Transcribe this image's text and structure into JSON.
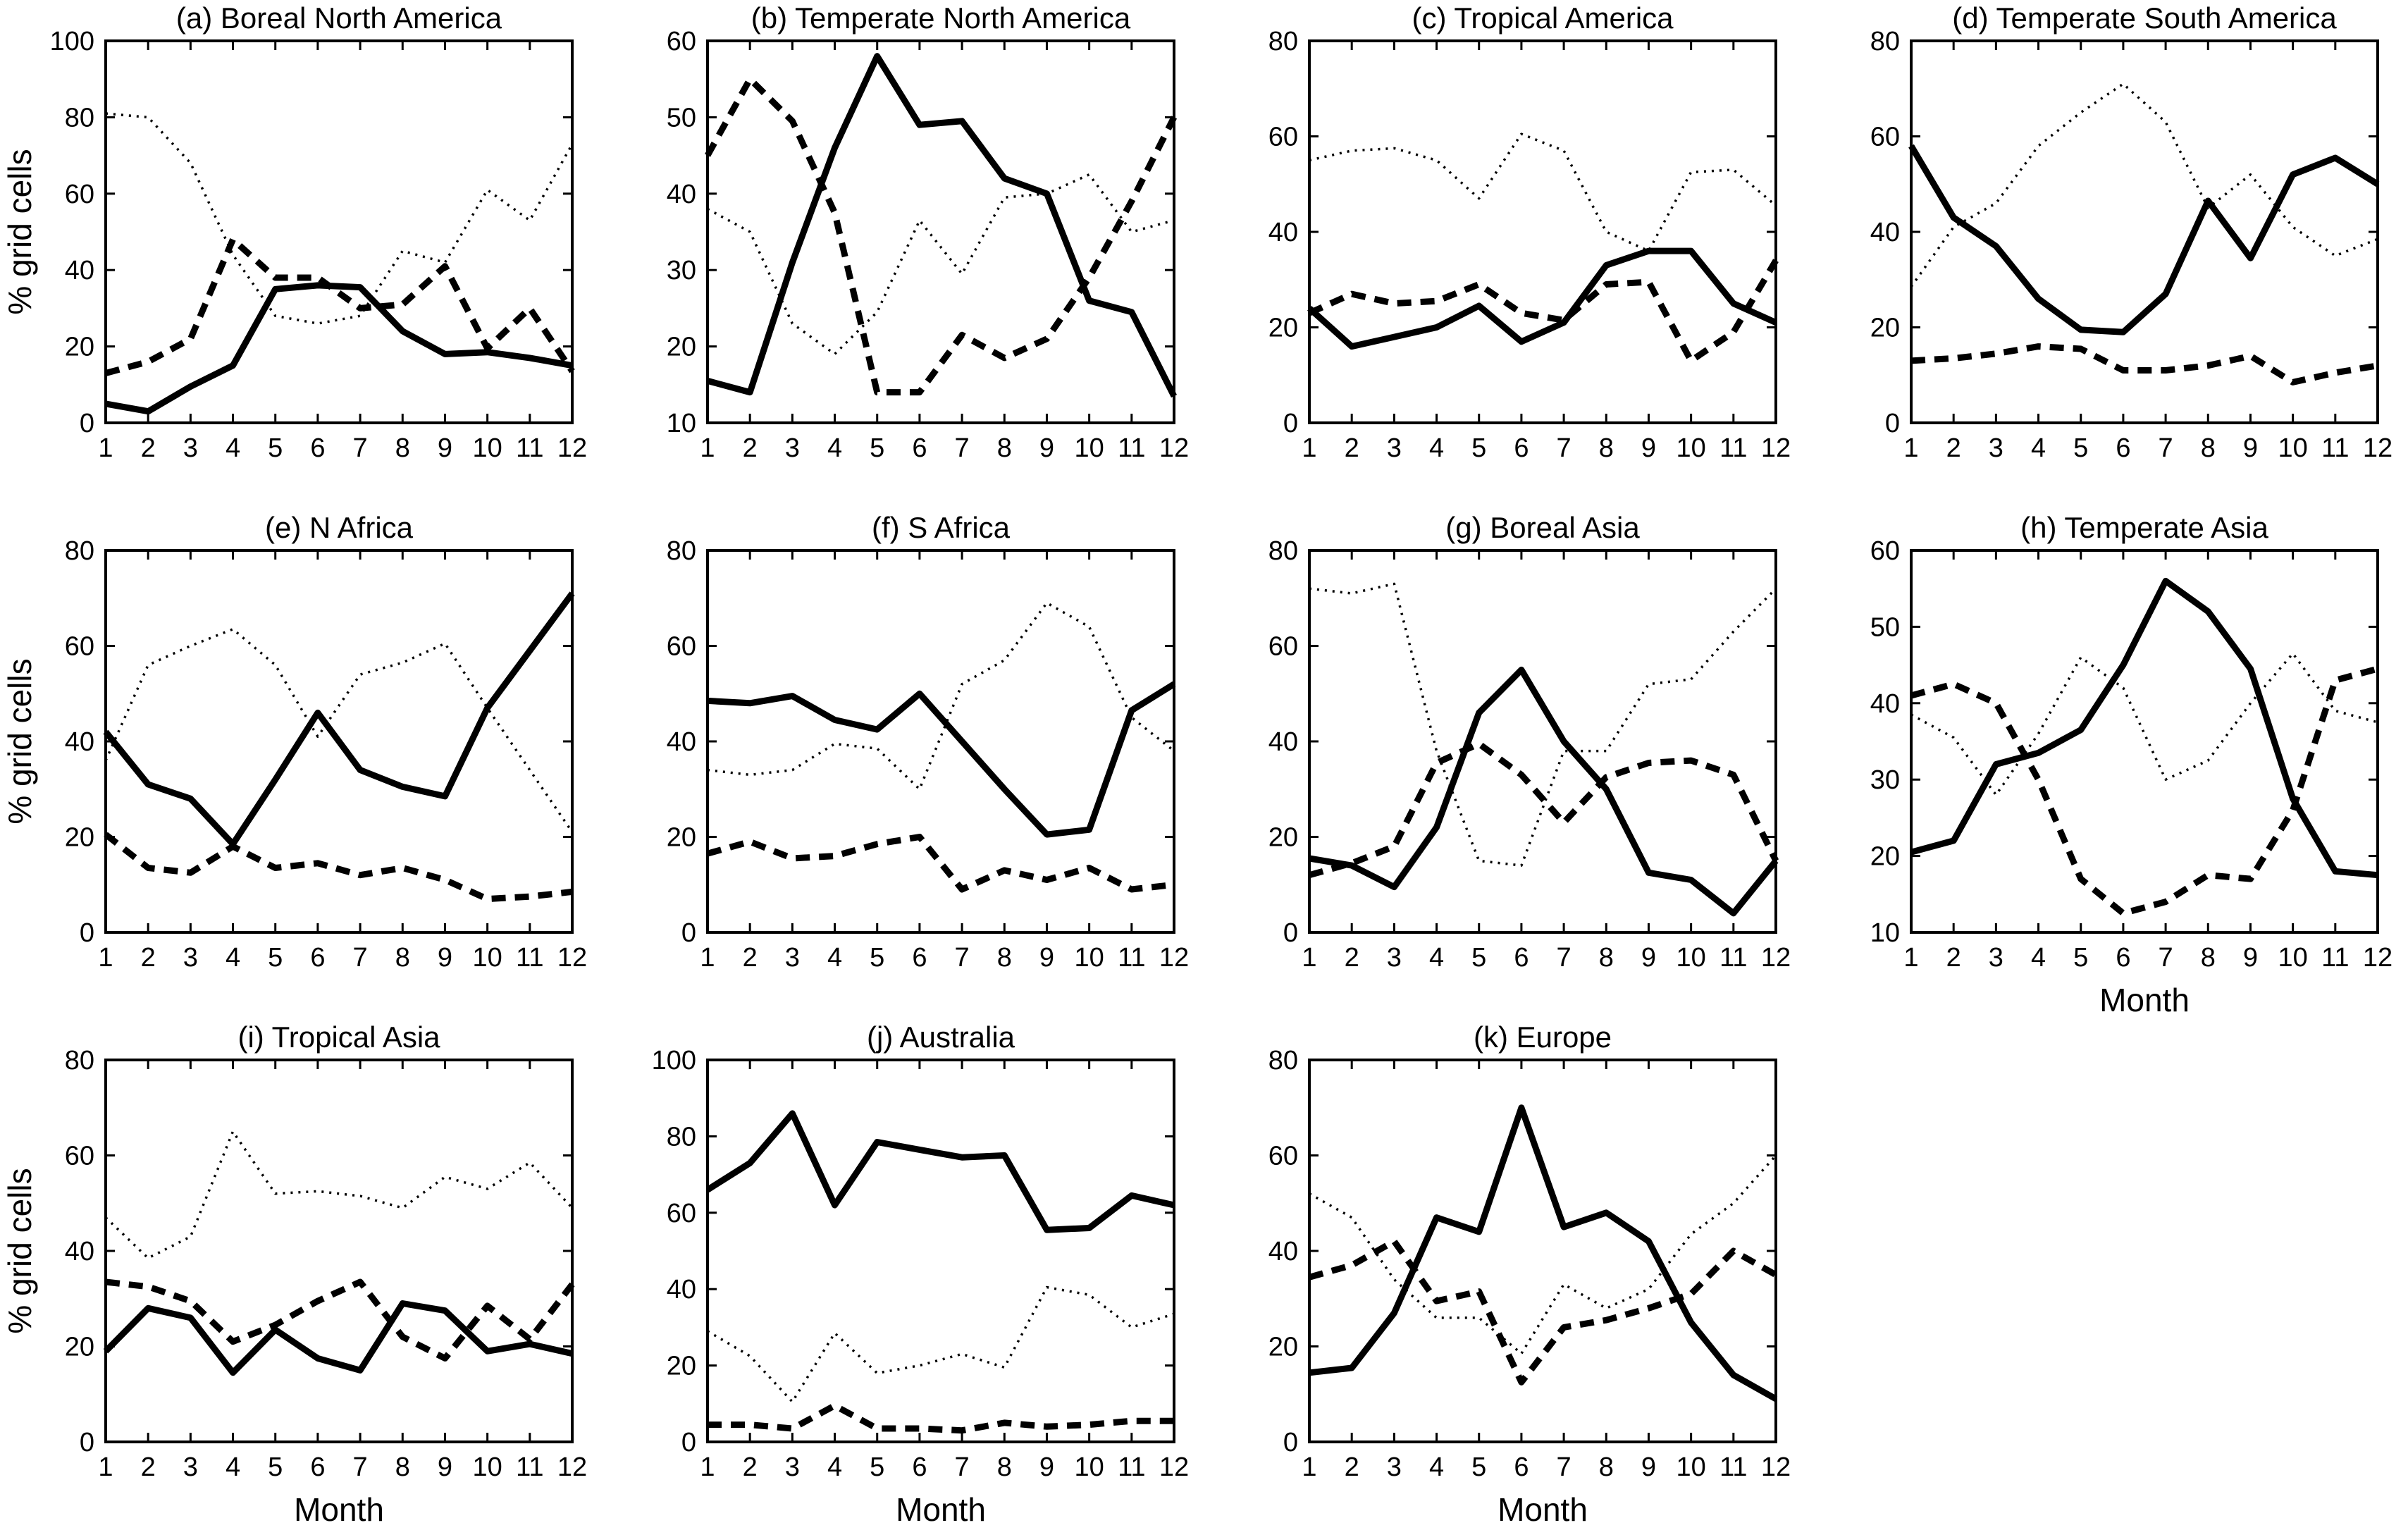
{
  "figure": {
    "background": "#ffffff",
    "line_color": "#000000",
    "ylabel": "% grid cells",
    "xlabel": "Month",
    "x_months": [
      1,
      2,
      3,
      4,
      5,
      6,
      7,
      8,
      9,
      10,
      11,
      12
    ]
  },
  "chart_data": [
    {
      "id": "a",
      "type": "line",
      "title": "(a) Boreal North America",
      "xlabel": "",
      "ylabel": "% grid cells",
      "ylim": [
        0,
        100
      ],
      "yticks": [
        0,
        20,
        40,
        60,
        80,
        100
      ],
      "show_ylabel": true,
      "show_xlabel": false,
      "x": [
        1,
        2,
        3,
        4,
        5,
        6,
        7,
        8,
        9,
        10,
        11,
        12
      ],
      "series": [
        {
          "name": "thick_solid",
          "style": "solid",
          "values": [
            5,
            3,
            9.5,
            15,
            35,
            36,
            35.5,
            24,
            18,
            18.5,
            17,
            15
          ]
        },
        {
          "name": "thick_dashed",
          "style": "dashed",
          "values": [
            13,
            16,
            22,
            48,
            38,
            38,
            30,
            31,
            41,
            19.5,
            30,
            13.5
          ]
        },
        {
          "name": "thin_dotted",
          "style": "dotted",
          "values": [
            81,
            80,
            68,
            44,
            28,
            26,
            28,
            45,
            42,
            61,
            53,
            73
          ]
        }
      ]
    },
    {
      "id": "b",
      "type": "line",
      "title": "(b) Temperate North America",
      "xlabel": "",
      "ylabel": "",
      "ylim": [
        10,
        60
      ],
      "yticks": [
        10,
        20,
        30,
        40,
        50,
        60
      ],
      "show_ylabel": false,
      "show_xlabel": false,
      "x": [
        1,
        2,
        3,
        4,
        5,
        6,
        7,
        8,
        9,
        10,
        11,
        12
      ],
      "series": [
        {
          "name": "thick_solid",
          "style": "solid",
          "values": [
            15.5,
            14,
            31,
            46,
            58,
            49,
            49.5,
            42,
            40,
            26,
            24.5,
            13.5
          ]
        },
        {
          "name": "thick_dashed",
          "style": "dashed",
          "values": [
            45,
            55,
            49.5,
            37.5,
            14,
            14,
            21.5,
            18.5,
            21,
            29,
            39,
            50
          ]
        },
        {
          "name": "thin_dotted",
          "style": "dotted",
          "values": [
            38,
            35,
            23,
            19,
            24.5,
            36.5,
            29.5,
            39.5,
            40,
            42.5,
            35,
            36.5
          ]
        }
      ]
    },
    {
      "id": "c",
      "type": "line",
      "title": "(c) Tropical America",
      "xlabel": "",
      "ylabel": "",
      "ylim": [
        0,
        80
      ],
      "yticks": [
        0,
        20,
        40,
        60,
        80
      ],
      "show_ylabel": false,
      "show_xlabel": false,
      "x": [
        1,
        2,
        3,
        4,
        5,
        6,
        7,
        8,
        9,
        10,
        11,
        12
      ],
      "series": [
        {
          "name": "thick_solid",
          "style": "solid",
          "values": [
            24,
            16,
            18,
            20,
            24.5,
            17,
            21,
            33,
            36,
            36,
            25,
            21
          ]
        },
        {
          "name": "thick_dashed",
          "style": "dashed",
          "values": [
            23,
            27,
            25,
            25.5,
            29,
            23,
            21.5,
            29,
            29.5,
            13,
            19,
            34
          ]
        },
        {
          "name": "thin_dotted",
          "style": "dotted",
          "values": [
            55,
            57,
            57.5,
            55,
            47,
            60.5,
            57,
            40,
            36,
            52.5,
            53,
            45.5
          ]
        }
      ]
    },
    {
      "id": "d",
      "type": "line",
      "title": "(d) Temperate South America",
      "xlabel": "",
      "ylabel": "",
      "ylim": [
        0,
        80
      ],
      "yticks": [
        0,
        20,
        40,
        60,
        80
      ],
      "show_ylabel": false,
      "show_xlabel": false,
      "x": [
        1,
        2,
        3,
        4,
        5,
        6,
        7,
        8,
        9,
        10,
        11,
        12
      ],
      "series": [
        {
          "name": "thick_solid",
          "style": "solid",
          "values": [
            58,
            43,
            37,
            26,
            19.5,
            19,
            27,
            46.5,
            34.5,
            52,
            55.5,
            50
          ]
        },
        {
          "name": "thick_dashed",
          "style": "dashed",
          "values": [
            13,
            13.5,
            14.5,
            16,
            15.5,
            11,
            11,
            12,
            14,
            8.5,
            10.5,
            12
          ]
        },
        {
          "name": "thin_dotted",
          "style": "dotted",
          "values": [
            28.5,
            41,
            46,
            58,
            65,
            71,
            63,
            45,
            52,
            41,
            35,
            38.5
          ]
        }
      ]
    },
    {
      "id": "e",
      "type": "line",
      "title": "(e) N Africa",
      "xlabel": "",
      "ylabel": "% grid cells",
      "ylim": [
        0,
        80
      ],
      "yticks": [
        0,
        20,
        40,
        60,
        80
      ],
      "show_ylabel": true,
      "show_xlabel": false,
      "x": [
        1,
        2,
        3,
        4,
        5,
        6,
        7,
        8,
        9,
        10,
        11,
        12
      ],
      "series": [
        {
          "name": "thick_solid",
          "style": "solid",
          "values": [
            42,
            31,
            28,
            18.5,
            32,
            46,
            34,
            30.5,
            28.5,
            47,
            59,
            71
          ]
        },
        {
          "name": "thick_dashed",
          "style": "dashed",
          "values": [
            20.5,
            13.5,
            12.5,
            18,
            13.5,
            14.5,
            12,
            13.5,
            11,
            7,
            7.5,
            8.5
          ]
        },
        {
          "name": "thin_dotted",
          "style": "dotted",
          "values": [
            36,
            56,
            60,
            63.5,
            56,
            41,
            54,
            56.5,
            60.5,
            47,
            34,
            21
          ]
        }
      ]
    },
    {
      "id": "f",
      "type": "line",
      "title": "(f) S Africa",
      "xlabel": "",
      "ylabel": "",
      "ylim": [
        0,
        80
      ],
      "yticks": [
        0,
        20,
        40,
        60,
        80
      ],
      "show_ylabel": false,
      "show_xlabel": false,
      "x": [
        1,
        2,
        3,
        4,
        5,
        6,
        7,
        8,
        9,
        10,
        11,
        12
      ],
      "series": [
        {
          "name": "thick_solid",
          "style": "solid",
          "values": [
            48.5,
            48,
            49.5,
            44.5,
            42.5,
            50,
            40,
            30,
            20.5,
            21.5,
            46.5,
            52
          ]
        },
        {
          "name": "thick_dashed",
          "style": "dashed",
          "values": [
            16.5,
            19,
            15.5,
            16,
            18.5,
            20,
            9,
            13,
            11,
            13.5,
            9,
            10
          ]
        },
        {
          "name": "thin_dotted",
          "style": "dotted",
          "values": [
            34,
            33,
            34,
            39.5,
            38.5,
            30,
            52,
            57,
            69,
            64,
            45,
            38
          ]
        }
      ]
    },
    {
      "id": "g",
      "type": "line",
      "title": "(g) Boreal Asia",
      "xlabel": "",
      "ylabel": "",
      "ylim": [
        0,
        80
      ],
      "yticks": [
        0,
        20,
        40,
        60,
        80
      ],
      "show_ylabel": false,
      "show_xlabel": false,
      "x": [
        1,
        2,
        3,
        4,
        5,
        6,
        7,
        8,
        9,
        10,
        11,
        12
      ],
      "series": [
        {
          "name": "thick_solid",
          "style": "solid",
          "values": [
            15.5,
            14,
            9.5,
            22,
            46,
            55,
            40,
            30,
            12.5,
            11,
            4,
            15
          ]
        },
        {
          "name": "thick_dashed",
          "style": "dashed",
          "values": [
            12,
            14.5,
            18,
            35.5,
            39.5,
            33,
            23,
            32.5,
            35.5,
            36,
            33,
            15
          ]
        },
        {
          "name": "thin_dotted",
          "style": "dotted",
          "values": [
            72,
            71,
            73,
            38,
            15,
            14,
            38,
            38,
            52,
            53,
            63,
            72
          ]
        }
      ]
    },
    {
      "id": "h",
      "type": "line",
      "title": "(h) Temperate Asia",
      "xlabel": "Month",
      "ylabel": "",
      "ylim": [
        10,
        60
      ],
      "yticks": [
        10,
        20,
        30,
        40,
        50,
        60
      ],
      "show_ylabel": false,
      "show_xlabel": true,
      "x": [
        1,
        2,
        3,
        4,
        5,
        6,
        7,
        8,
        9,
        10,
        11,
        12
      ],
      "series": [
        {
          "name": "thick_solid",
          "style": "solid",
          "values": [
            20.5,
            22,
            32,
            33.5,
            36.5,
            45,
            56,
            52,
            44.5,
            27.5,
            18,
            17.5
          ]
        },
        {
          "name": "thick_dashed",
          "style": "dashed",
          "values": [
            41,
            42.5,
            40,
            30,
            17,
            12.5,
            14,
            17.5,
            17,
            26,
            43,
            44.5
          ]
        },
        {
          "name": "thin_dotted",
          "style": "dotted",
          "values": [
            38.5,
            35.5,
            28,
            36,
            46,
            42,
            30,
            32.5,
            40,
            46.5,
            39,
            37.5
          ]
        }
      ]
    },
    {
      "id": "i",
      "type": "line",
      "title": "(i) Tropical Asia",
      "xlabel": "Month",
      "ylabel": "% grid cells",
      "ylim": [
        0,
        80
      ],
      "yticks": [
        0,
        20,
        40,
        60,
        80
      ],
      "show_ylabel": true,
      "show_xlabel": true,
      "x": [
        1,
        2,
        3,
        4,
        5,
        6,
        7,
        8,
        9,
        10,
        11,
        12
      ],
      "series": [
        {
          "name": "thick_solid",
          "style": "solid",
          "values": [
            19,
            28,
            26,
            14.5,
            23.5,
            17.5,
            15,
            29,
            27.5,
            19,
            20.5,
            18.5
          ]
        },
        {
          "name": "thick_dashed",
          "style": "dashed",
          "values": [
            33.5,
            32.5,
            29.5,
            21,
            24.5,
            29.5,
            33.5,
            22,
            17.5,
            28.5,
            21.5,
            33
          ]
        },
        {
          "name": "thin_dotted",
          "style": "dotted",
          "values": [
            47,
            38.5,
            43,
            65,
            52,
            52.5,
            51.5,
            49,
            55.5,
            53,
            58.5,
            49
          ]
        }
      ]
    },
    {
      "id": "j",
      "type": "line",
      "title": "(j) Australia",
      "xlabel": "Month",
      "ylabel": "",
      "ylim": [
        0,
        100
      ],
      "yticks": [
        0,
        20,
        40,
        60,
        80,
        100
      ],
      "show_ylabel": false,
      "show_xlabel": true,
      "x": [
        1,
        2,
        3,
        4,
        5,
        6,
        7,
        8,
        9,
        10,
        11,
        12
      ],
      "series": [
        {
          "name": "thick_solid",
          "style": "solid",
          "values": [
            66,
            73,
            86,
            62,
            78.5,
            76.5,
            74.5,
            75,
            55.5,
            56,
            64.5,
            62
          ]
        },
        {
          "name": "thick_dashed",
          "style": "dashed",
          "values": [
            4.5,
            4.5,
            3.5,
            9.5,
            3.5,
            3.5,
            3,
            5,
            4,
            4.5,
            5.5,
            5.5
          ]
        },
        {
          "name": "thin_dotted",
          "style": "dotted",
          "values": [
            29,
            22.5,
            10.5,
            28.5,
            18,
            20,
            23,
            19.5,
            40.5,
            38.5,
            30,
            33.5
          ]
        }
      ]
    },
    {
      "id": "k",
      "type": "line",
      "title": "(k) Europe",
      "xlabel": "Month",
      "ylabel": "",
      "ylim": [
        0,
        80
      ],
      "yticks": [
        0,
        20,
        40,
        60,
        80
      ],
      "show_ylabel": false,
      "show_xlabel": true,
      "x": [
        1,
        2,
        3,
        4,
        5,
        6,
        7,
        8,
        9,
        10,
        11,
        12
      ],
      "series": [
        {
          "name": "thick_solid",
          "style": "solid",
          "values": [
            14.5,
            15.5,
            27,
            47,
            44,
            70,
            45,
            48,
            42,
            25,
            14,
            9
          ]
        },
        {
          "name": "thick_dashed",
          "style": "dashed",
          "values": [
            34.5,
            37,
            42,
            29.5,
            31.5,
            12.5,
            24,
            25.5,
            28,
            31,
            40,
            35
          ]
        },
        {
          "name": "thin_dotted",
          "style": "dotted",
          "values": [
            52,
            47,
            34,
            26,
            26,
            18.5,
            33,
            28,
            32,
            43.5,
            50,
            60
          ]
        }
      ]
    }
  ]
}
